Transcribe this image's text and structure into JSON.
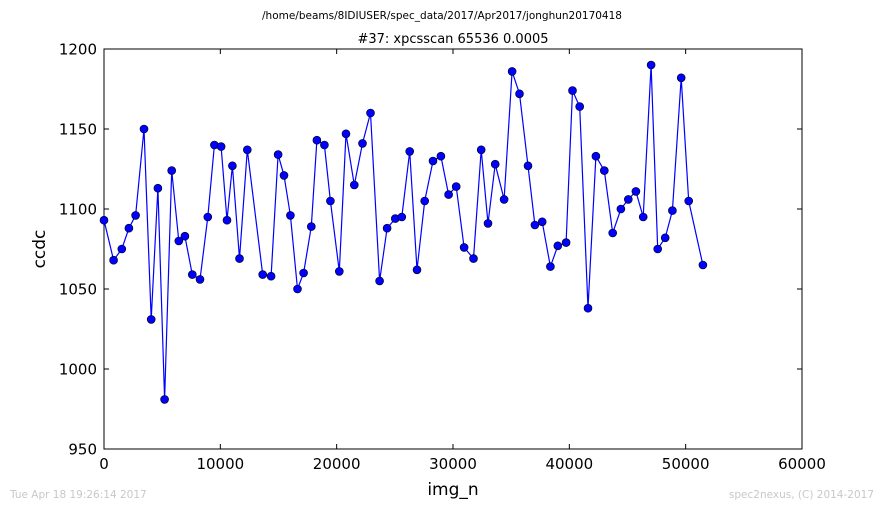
{
  "figure": {
    "suptitle": "/home/beams/8IDIUSER/spec_data/2017/Apr2017/jonghun20170418",
    "timestamp": "Tue Apr 18 19:26:14 2017",
    "credit": "spec2nexus, (C) 2014-2017"
  },
  "colors": {
    "series": "#0000ff",
    "background": "#ffffff",
    "axes": "#000000",
    "footer": "#c8c8c8"
  },
  "chart_data": {
    "type": "line",
    "title": "#37: xpcsscan 65536 0.0005",
    "xlabel": "img_n",
    "ylabel": "ccdc",
    "xlim": [
      0,
      60000
    ],
    "ylim": [
      950,
      1200
    ],
    "xticks": [
      0,
      10000,
      20000,
      30000,
      40000,
      50000,
      60000
    ],
    "yticks": [
      950,
      1000,
      1050,
      1100,
      1150,
      1200
    ],
    "grid": false,
    "marker": "circle",
    "series": [
      {
        "x": [
          0,
          822,
          1533,
          2140,
          2720,
          3436,
          4058,
          4636,
          5212,
          5821,
          6431,
          6951,
          7594,
          8254,
          8921,
          9494,
          10062,
          10569,
          11039,
          11648,
          12317,
          13642,
          14362,
          14967,
          15474,
          16026,
          16631,
          17160,
          17818,
          18301,
          18947,
          19464,
          20226,
          20804,
          21514,
          22224,
          22908,
          23694,
          24337,
          25043,
          25595,
          26277,
          26907,
          27565,
          28279,
          28957,
          29626,
          30272,
          30955,
          31763,
          32424,
          33005,
          33626,
          34393,
          35080,
          35718,
          36451,
          37041,
          37668,
          38372,
          39005,
          39718,
          40271,
          40892,
          41604,
          42284,
          43005,
          43725,
          44436,
          45069,
          45723,
          46350,
          47031,
          47600,
          48242,
          48858,
          49613,
          50259,
          51481
        ],
        "y": [
          1093,
          1068,
          1075,
          1088,
          1096,
          1150,
          1031,
          1113,
          981,
          1124,
          1080,
          1083,
          1059,
          1056,
          1095,
          1140,
          1139,
          1093,
          1127,
          1069,
          1137,
          1059,
          1058,
          1134,
          1121,
          1096,
          1050,
          1060,
          1089,
          1143,
          1140,
          1105,
          1061,
          1147,
          1115,
          1141,
          1160,
          1055,
          1088,
          1094,
          1095,
          1136,
          1062,
          1105,
          1130,
          1133,
          1109,
          1114,
          1076,
          1069,
          1137,
          1091,
          1128,
          1106,
          1186,
          1172,
          1127,
          1090,
          1092,
          1064,
          1077,
          1079,
          1174,
          1164,
          1038,
          1133,
          1124,
          1085,
          1100,
          1106,
          1111,
          1095,
          1190,
          1075,
          1082,
          1099,
          1182,
          1105,
          1065
        ]
      }
    ]
  }
}
